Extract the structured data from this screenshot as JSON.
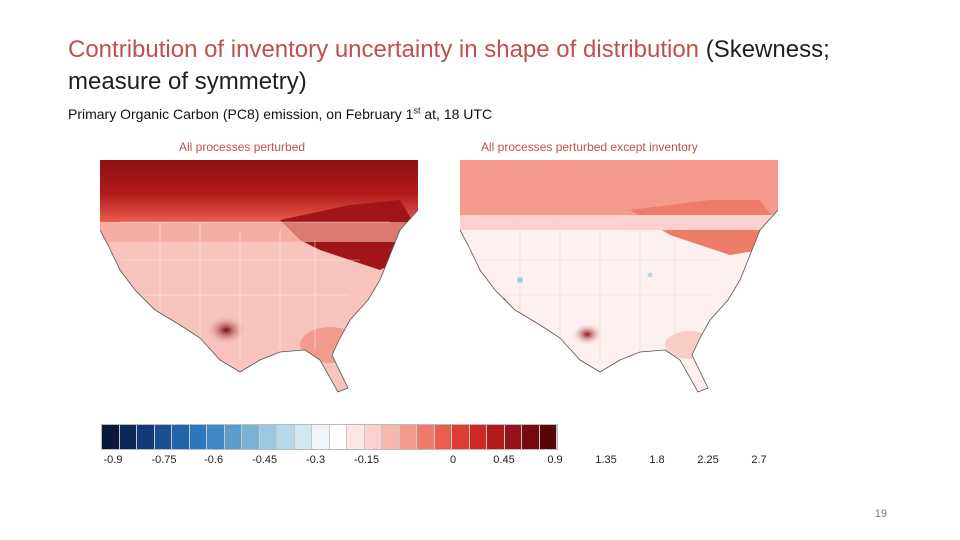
{
  "slide": {
    "title_highlight": "Contribution of inventory uncertainty in shape of distribution",
    "title_rest": " (Skewness; measure of symmetry)",
    "subtitle_main": "Primary Organic Carbon (PC8) emission, on February 1",
    "subtitle_sup": "st",
    "subtitle_tail": " at, 18 UTC",
    "page_number": "19"
  },
  "panels": [
    {
      "label": "All processes perturbed"
    },
    {
      "label": "All processes perturbed except inventory"
    }
  ],
  "colorbar": {
    "colors": [
      "#08183a",
      "#0b2858",
      "#123a78",
      "#1a4f90",
      "#2264a8",
      "#2c78bd",
      "#3f8ac6",
      "#5a9dcd",
      "#7ab2d6",
      "#9bc7df",
      "#b6d8e8",
      "#d2e8f1",
      "#eef6f9",
      "#ffffff",
      "#fde7e5",
      "#fbd1cd",
      "#f7b6ae",
      "#f39a8c",
      "#ee7c6b",
      "#e85d4c",
      "#de3e31",
      "#cc2a23",
      "#b31b1b",
      "#951318",
      "#770a0f",
      "#5a0509"
    ],
    "ticks": [
      "-0.9",
      "-0.75",
      "-0.6",
      "-0.45",
      "-0.3",
      "-0.15",
      "0",
      "0.45",
      "0.9",
      "1.35",
      "1.8",
      "2.25",
      "2.7"
    ]
  }
}
